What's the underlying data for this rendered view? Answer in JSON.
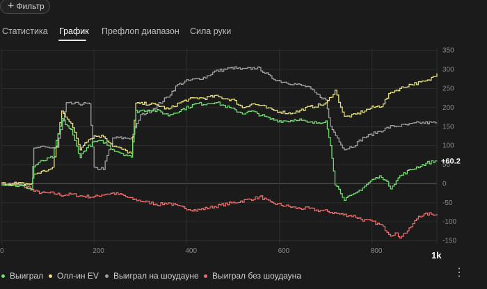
{
  "filter_button": {
    "label": "Фильтр",
    "icon": "plus-icon"
  },
  "tabs": [
    {
      "label": "Статистика",
      "active": false
    },
    {
      "label": "График",
      "active": true
    },
    {
      "label": "Префлоп диапазон",
      "active": false
    },
    {
      "label": "Сила руки",
      "active": false
    }
  ],
  "chart_data": {
    "type": "line",
    "xlim": [
      0,
      940
    ],
    "ylim": [
      -160,
      355
    ],
    "x_ticks": [
      0,
      200,
      400,
      600,
      800
    ],
    "x_tick_labels": [
      "0",
      "200",
      "400",
      "600",
      "800"
    ],
    "y_ticks": [
      350,
      300,
      250,
      200,
      150,
      100,
      50,
      0,
      -50,
      -100,
      -150
    ],
    "y_tick_labels": [
      "350",
      "300",
      "250",
      "200",
      "150",
      "100",
      "50",
      "0",
      "-50",
      "-100",
      "-150"
    ],
    "end_label": "+60.2",
    "x_end_label": "1k",
    "grid": true,
    "series": [
      {
        "name": "Выиграл без шоудауна",
        "color": "#f06b6b",
        "points": [
          [
            0,
            0
          ],
          [
            30,
            -3
          ],
          [
            50,
            -8
          ],
          [
            60,
            -10
          ],
          [
            70,
            -20
          ],
          [
            90,
            -25
          ],
          [
            110,
            -25
          ],
          [
            130,
            -30
          ],
          [
            150,
            -28
          ],
          [
            170,
            -32
          ],
          [
            200,
            -35
          ],
          [
            220,
            -28
          ],
          [
            240,
            -25
          ],
          [
            260,
            -30
          ],
          [
            280,
            -40
          ],
          [
            300,
            -45
          ],
          [
            320,
            -50
          ],
          [
            340,
            -55
          ],
          [
            360,
            -50
          ],
          [
            380,
            -60
          ],
          [
            400,
            -65
          ],
          [
            420,
            -70
          ],
          [
            440,
            -65
          ],
          [
            460,
            -60
          ],
          [
            480,
            -55
          ],
          [
            500,
            -50
          ],
          [
            520,
            -45
          ],
          [
            540,
            -40
          ],
          [
            560,
            -35
          ],
          [
            580,
            -50
          ],
          [
            600,
            -55
          ],
          [
            620,
            -60
          ],
          [
            640,
            -65
          ],
          [
            660,
            -65
          ],
          [
            680,
            -70
          ],
          [
            700,
            -72
          ],
          [
            730,
            -80
          ],
          [
            760,
            -85
          ],
          [
            780,
            -95
          ],
          [
            800,
            -100
          ],
          [
            820,
            -110
          ],
          [
            840,
            -135
          ],
          [
            850,
            -130
          ],
          [
            860,
            -140
          ],
          [
            880,
            -120
          ],
          [
            900,
            -85
          ],
          [
            920,
            -80
          ],
          [
            940,
            -80
          ]
        ]
      },
      {
        "name": "Выиграл на шоудауне",
        "color": "#a0a0a0",
        "points": [
          [
            0,
            0
          ],
          [
            65,
            0
          ],
          [
            70,
            90
          ],
          [
            80,
            95
          ],
          [
            120,
            95
          ],
          [
            140,
            210
          ],
          [
            190,
            210
          ],
          [
            200,
            40
          ],
          [
            220,
            40
          ],
          [
            240,
            120
          ],
          [
            280,
            120
          ],
          [
            300,
            180
          ],
          [
            320,
            190
          ],
          [
            340,
            210
          ],
          [
            360,
            230
          ],
          [
            380,
            260
          ],
          [
            400,
            270
          ],
          [
            440,
            280
          ],
          [
            460,
            295
          ],
          [
            500,
            305
          ],
          [
            520,
            300
          ],
          [
            550,
            305
          ],
          [
            560,
            300
          ],
          [
            580,
            280
          ],
          [
            600,
            270
          ],
          [
            620,
            265
          ],
          [
            660,
            255
          ],
          [
            680,
            235
          ],
          [
            700,
            220
          ],
          [
            710,
            150
          ],
          [
            740,
            90
          ],
          [
            760,
            100
          ],
          [
            780,
            120
          ],
          [
            800,
            130
          ],
          [
            820,
            140
          ],
          [
            840,
            150
          ],
          [
            880,
            155
          ],
          [
            900,
            160
          ],
          [
            920,
            160
          ],
          [
            940,
            160
          ]
        ]
      },
      {
        "name": "Олл-ин EV",
        "color": "#e8e07a",
        "points": [
          [
            0,
            0
          ],
          [
            65,
            0
          ],
          [
            70,
            25
          ],
          [
            110,
            40
          ],
          [
            130,
            190
          ],
          [
            150,
            160
          ],
          [
            170,
            90
          ],
          [
            180,
            110
          ],
          [
            200,
            125
          ],
          [
            220,
            125
          ],
          [
            240,
            100
          ],
          [
            260,
            90
          ],
          [
            280,
            80
          ],
          [
            290,
            210
          ],
          [
            320,
            210
          ],
          [
            340,
            205
          ],
          [
            360,
            195
          ],
          [
            380,
            210
          ],
          [
            400,
            220
          ],
          [
            420,
            225
          ],
          [
            440,
            225
          ],
          [
            460,
            230
          ],
          [
            480,
            225
          ],
          [
            500,
            220
          ],
          [
            520,
            200
          ],
          [
            540,
            210
          ],
          [
            560,
            205
          ],
          [
            580,
            195
          ],
          [
            600,
            190
          ],
          [
            620,
            185
          ],
          [
            640,
            190
          ],
          [
            660,
            200
          ],
          [
            680,
            205
          ],
          [
            700,
            210
          ],
          [
            720,
            245
          ],
          [
            740,
            175
          ],
          [
            760,
            180
          ],
          [
            780,
            190
          ],
          [
            800,
            200
          ],
          [
            820,
            205
          ],
          [
            840,
            240
          ],
          [
            860,
            250
          ],
          [
            880,
            260
          ],
          [
            900,
            265
          ],
          [
            920,
            270
          ],
          [
            940,
            290
          ]
        ]
      },
      {
        "name": "Выиграл",
        "color": "#6fe06f",
        "points": [
          [
            0,
            0
          ],
          [
            50,
            -8
          ],
          [
            65,
            -15
          ],
          [
            70,
            45
          ],
          [
            80,
            55
          ],
          [
            110,
            70
          ],
          [
            130,
            170
          ],
          [
            150,
            140
          ],
          [
            170,
            70
          ],
          [
            180,
            90
          ],
          [
            200,
            110
          ],
          [
            220,
            110
          ],
          [
            240,
            90
          ],
          [
            260,
            80
          ],
          [
            280,
            70
          ],
          [
            290,
            190
          ],
          [
            320,
            195
          ],
          [
            340,
            190
          ],
          [
            360,
            180
          ],
          [
            380,
            190
          ],
          [
            400,
            200
          ],
          [
            420,
            210
          ],
          [
            440,
            210
          ],
          [
            460,
            215
          ],
          [
            480,
            205
          ],
          [
            500,
            195
          ],
          [
            520,
            185
          ],
          [
            540,
            190
          ],
          [
            560,
            180
          ],
          [
            580,
            170
          ],
          [
            600,
            165
          ],
          [
            620,
            165
          ],
          [
            640,
            170
          ],
          [
            660,
            160
          ],
          [
            680,
            160
          ],
          [
            700,
            165
          ],
          [
            710,
            100
          ],
          [
            720,
            0
          ],
          [
            740,
            -40
          ],
          [
            760,
            -30
          ],
          [
            780,
            -10
          ],
          [
            800,
            10
          ],
          [
            820,
            20
          ],
          [
            840,
            -10
          ],
          [
            860,
            20
          ],
          [
            880,
            35
          ],
          [
            900,
            45
          ],
          [
            920,
            55
          ],
          [
            940,
            60
          ]
        ]
      }
    ]
  },
  "legend": [
    {
      "label": "Выиграл",
      "color": "#6fe06f"
    },
    {
      "label": "Олл-ин EV",
      "color": "#e8e07a"
    },
    {
      "label": "Выиграл на шоудауне",
      "color": "#a0a0a0"
    },
    {
      "label": "Выиграл без шоудауна",
      "color": "#f06b6b"
    }
  ]
}
